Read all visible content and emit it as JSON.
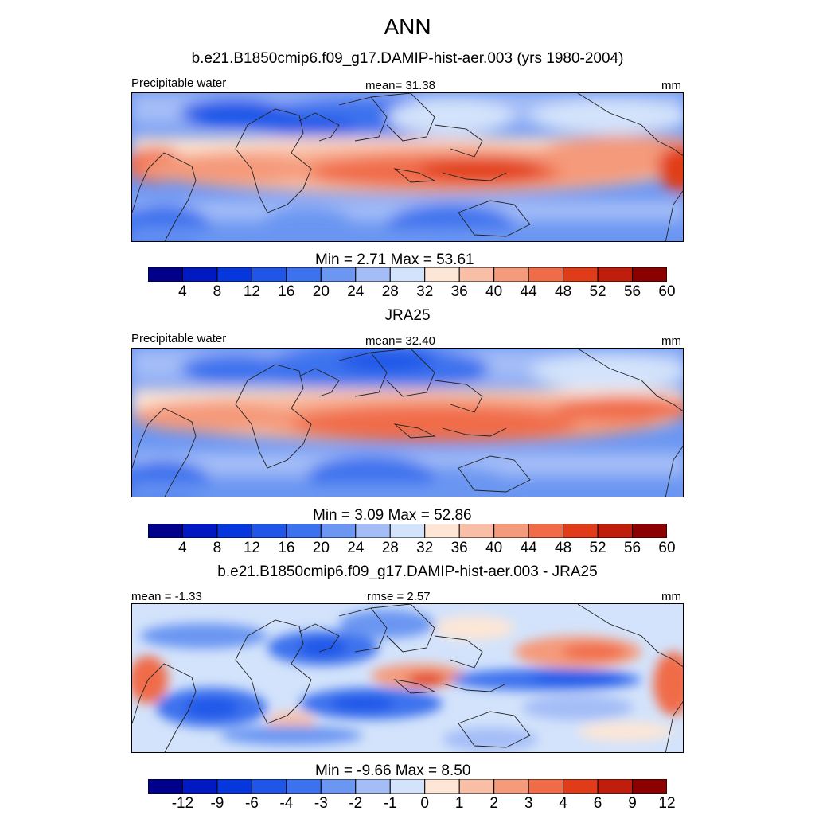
{
  "figure": {
    "title": "ANN",
    "subtitle": "b.e21.B1850cmip6.f09_g17.DAMIP-hist-aer.003 (yrs 1980-2004)"
  },
  "panels": [
    {
      "variable": "Precipitable water",
      "stat": "mean=  31.38",
      "units": "mm",
      "minmax": "Min =   2.71 Max =  53.61"
    },
    {
      "header": "JRA25",
      "variable": "Precipitable water",
      "stat": "mean=  32.40",
      "units": "mm",
      "minmax": "Min =   3.09 Max =  52.86"
    },
    {
      "header": "b.e21.B1850cmip6.f09_g17.DAMIP-hist-aer.003 - JRA25",
      "mean": "mean =  -1.33",
      "rmse": "rmse =   2.57",
      "units": "mm",
      "minmax": "Min =  -9.66 Max =   8.50"
    }
  ],
  "colorbars": {
    "abs_levels": [
      "4",
      "8",
      "12",
      "16",
      "20",
      "24",
      "28",
      "32",
      "36",
      "40",
      "44",
      "48",
      "52",
      "56",
      "60"
    ],
    "diff_levels": [
      "-12",
      "-9",
      "-6",
      "-4",
      "-3",
      "-2",
      "-1",
      "0",
      "1",
      "2",
      "3",
      "4",
      "6",
      "9",
      "12"
    ],
    "colors": [
      "#00008b",
      "#0019c0",
      "#0537dc",
      "#1f56e8",
      "#3d72ee",
      "#6b96f2",
      "#a4bdf7",
      "#d3e3fb",
      "#fde6d5",
      "#f9bfa6",
      "#f59a7a",
      "#f06c48",
      "#e13c19",
      "#bf1e0d",
      "#8b0000"
    ]
  },
  "chart_data": [
    {
      "type": "heatmap",
      "title": "Precipitable water",
      "units": "mm",
      "mean": 31.38,
      "min": 2.71,
      "max": 53.61,
      "contour_levels": [
        4,
        8,
        12,
        16,
        20,
        24,
        28,
        32,
        36,
        40,
        44,
        48,
        52,
        56,
        60
      ]
    },
    {
      "type": "heatmap",
      "title": "JRA25 Precipitable water",
      "units": "mm",
      "mean": 32.4,
      "min": 3.09,
      "max": 52.86,
      "contour_levels": [
        4,
        8,
        12,
        16,
        20,
        24,
        28,
        32,
        36,
        40,
        44,
        48,
        52,
        56,
        60
      ]
    },
    {
      "type": "heatmap",
      "title": "b.e21.B1850cmip6.f09_g17.DAMIP-hist-aer.003 - JRA25",
      "units": "mm",
      "mean": -1.33,
      "rmse": 2.57,
      "min": -9.66,
      "max": 8.5,
      "contour_levels": [
        -12,
        -9,
        -6,
        -4,
        -3,
        -2,
        -1,
        0,
        1,
        2,
        3,
        4,
        6,
        9,
        12
      ]
    }
  ]
}
